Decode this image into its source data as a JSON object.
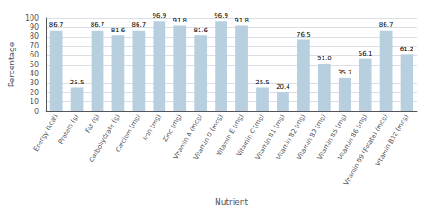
{
  "chart_data": {
    "type": "bar",
    "categories": [
      "Energy (kcal)",
      "Protein (g)",
      "Fat (g)",
      "Carbohydrate (g)",
      "Calcium (mg)",
      "Iron (mg)",
      "Zinc (mg)",
      "Vitamin A (mcg)",
      "Vitamin D (mcg)",
      "Vitamin E (mg)",
      "Vitamin C (mg)",
      "Vitamin B1 (mg)",
      "Vitamin B2 (mg)",
      "Vitamin B3 (mg)",
      "Vitamin B5 (mg)",
      "Vitamin B6 (mg)",
      "Vitamin B9 (Folate) (mcg)",
      "Vitamin B12 (mcg)"
    ],
    "values": [
      86.7,
      25.5,
      86.7,
      81.6,
      86.7,
      96.9,
      91.8,
      81.6,
      96.9,
      91.8,
      25.5,
      20.4,
      76.5,
      51.0,
      35.7,
      56.1,
      86.7,
      61.2
    ],
    "value_labels": [
      "86.7",
      "25.5",
      "86.7",
      "81.6",
      "86.7",
      "96.9",
      "91.8",
      "81.6",
      "96.9",
      "91.8",
      "25.5",
      "20.4",
      "76.5",
      "51.0",
      "35.7",
      "56.1",
      "86.7",
      "61.2"
    ],
    "color": "#b8cfe0",
    "xlabel": "Nutrient",
    "ylabel": "Percentage",
    "ylim": [
      0,
      100
    ],
    "yticks": [
      0,
      10,
      20,
      30,
      40,
      50,
      60,
      70,
      80,
      90,
      100
    ],
    "grid": true,
    "data_labels": true
  }
}
